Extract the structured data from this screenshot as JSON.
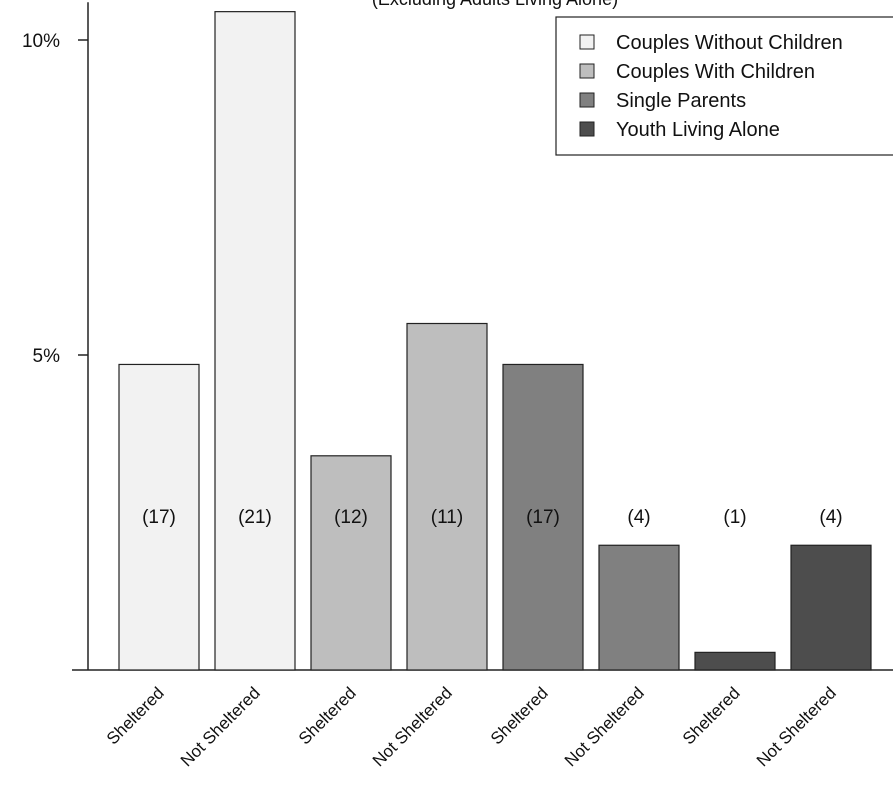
{
  "chart_data": {
    "type": "bar",
    "title": "",
    "subtitle": "(Excluding Adults Living Alone)",
    "xlabel": "",
    "ylabel": "",
    "ylim": [
      0,
      10.6
    ],
    "yticks": [
      {
        "value": 5,
        "label": "5%"
      },
      {
        "value": 10,
        "label": "10%"
      }
    ],
    "grid": false,
    "legend_position": "top-right",
    "legend": [
      {
        "name": "Couples Without Children",
        "color": "#f2f2f2"
      },
      {
        "name": "Couples With Children",
        "color": "#bebebe"
      },
      {
        "name": "Single Parents",
        "color": "#808080"
      },
      {
        "name": "Youth Living Alone",
        "color": "#4d4d4d"
      }
    ],
    "categories": [
      "Sheltered",
      "Not Sheltered",
      "Sheltered",
      "Not Sheltered",
      "Sheltered",
      "Not Sheltered",
      "Sheltered",
      "Not Sheltered"
    ],
    "bars": [
      {
        "category": "Sheltered",
        "group": "Couples Without Children",
        "value": 4.85,
        "label": "(17)",
        "color": "#f2f2f2"
      },
      {
        "category": "Not Sheltered",
        "group": "Couples Without Children",
        "value": 10.45,
        "label": "(21)",
        "color": "#f2f2f2"
      },
      {
        "category": "Sheltered",
        "group": "Couples With Children",
        "value": 3.4,
        "label": "(12)",
        "color": "#bebebe"
      },
      {
        "category": "Not Sheltered",
        "group": "Couples With Children",
        "value": 5.5,
        "label": "(11)",
        "color": "#bebebe"
      },
      {
        "category": "Sheltered",
        "group": "Single Parents",
        "value": 4.85,
        "label": "(17)",
        "color": "#808080"
      },
      {
        "category": "Not Sheltered",
        "group": "Single Parents",
        "value": 1.98,
        "label": "(4)",
        "color": "#808080"
      },
      {
        "category": "Sheltered",
        "group": "Youth Living Alone",
        "value": 0.28,
        "label": "(1)",
        "color": "#4d4d4d"
      },
      {
        "category": "Not Sheltered",
        "group": "Youth Living Alone",
        "value": 1.98,
        "label": "(4)",
        "color": "#4d4d4d"
      }
    ]
  }
}
